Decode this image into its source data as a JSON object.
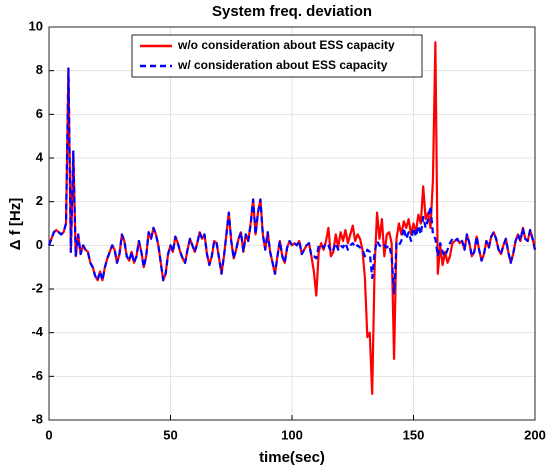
{
  "chart_data": {
    "type": "line",
    "title": "System freq. deviation",
    "xlabel": "time(sec)",
    "ylabel": "Δ f [Hz]",
    "x": [
      0,
      1,
      2,
      3,
      4,
      5,
      6,
      7,
      8,
      9,
      10,
      11,
      12,
      13,
      14,
      15,
      16,
      17,
      18,
      19,
      20,
      21,
      22,
      23,
      24,
      25,
      26,
      27,
      28,
      29,
      30,
      31,
      32,
      33,
      34,
      35,
      36,
      37,
      38,
      39,
      40,
      41,
      42,
      43,
      44,
      45,
      46,
      47,
      48,
      49,
      50,
      51,
      52,
      53,
      54,
      55,
      56,
      57,
      58,
      59,
      60,
      61,
      62,
      63,
      64,
      65,
      66,
      67,
      68,
      69,
      70,
      71,
      72,
      73,
      74,
      75,
      76,
      77,
      78,
      79,
      80,
      81,
      82,
      83,
      84,
      85,
      86,
      87,
      88,
      89,
      90,
      91,
      92,
      93,
      94,
      95,
      96,
      97,
      98,
      99,
      100,
      101,
      102,
      103,
      104,
      105,
      106,
      107,
      108,
      109,
      110,
      111,
      112,
      113,
      114,
      115,
      116,
      117,
      118,
      119,
      120,
      121,
      122,
      123,
      124,
      125,
      126,
      127,
      128,
      129,
      130,
      131,
      132,
      133,
      134,
      135,
      136,
      137,
      138,
      139,
      140,
      141,
      142,
      143,
      144,
      145,
      146,
      147,
      148,
      149,
      150,
      151,
      152,
      153,
      154,
      155,
      156,
      157,
      158,
      159,
      160,
      161,
      162,
      163,
      164,
      165,
      166,
      167,
      168,
      169,
      170,
      171,
      172,
      173,
      174,
      175,
      176,
      177,
      178,
      179,
      180,
      181,
      182,
      183,
      184,
      185,
      186,
      187,
      188,
      189,
      190,
      191,
      192,
      193,
      194,
      195,
      196,
      197,
      198,
      199,
      200
    ],
    "series": [
      {
        "name": "w/o consideration about ESS capacity",
        "color": "#ff0000",
        "linestyle": "solid",
        "values": [
          0,
          0.3,
          0.6,
          0.7,
          0.6,
          0.5,
          0.6,
          1.0,
          8.1,
          -0.3,
          4.3,
          -0.5,
          0.5,
          -0.4,
          0,
          -0.2,
          -0.3,
          -0.8,
          -1.0,
          -1.4,
          -1.6,
          -1.2,
          -1.6,
          -1.0,
          -0.6,
          -0.3,
          0,
          -0.2,
          -0.8,
          -0.4,
          0.5,
          0.2,
          -0.5,
          -0.7,
          -0.3,
          -0.8,
          -0.5,
          0.2,
          -0.3,
          -1.0,
          -0.5,
          0.6,
          0.3,
          0.8,
          0.5,
          0,
          -0.8,
          -1.6,
          -1.3,
          -0.4,
          0,
          -0.3,
          0.4,
          0.1,
          -0.3,
          -0.6,
          -0.8,
          -0.2,
          0.3,
          0,
          -0.3,
          0.1,
          0.6,
          0.3,
          0.5,
          -0.4,
          -0.9,
          -0.5,
          0.2,
          0.1,
          -0.6,
          -1.3,
          -0.5,
          0.5,
          1.5,
          0.2,
          -0.6,
          -0.2,
          0.3,
          0.6,
          -0.3,
          0.5,
          0.2,
          1.0,
          2.1,
          0.5,
          1.5,
          2.1,
          0.5,
          -0.2,
          0.6,
          -0.3,
          -0.8,
          -1.3,
          -0.5,
          0.2,
          -0.5,
          -0.8,
          -0.1,
          0.2,
          0,
          0.1,
          0,
          0.2,
          -0.4,
          -0.2,
          0,
          0.1,
          -0.5,
          -1.2,
          -2.3,
          -0.3,
          0.1,
          -0.2,
          0.2,
          0.8,
          -0.5,
          -0.3,
          0.5,
          -0.1,
          0.6,
          0.2,
          0.7,
          0.1,
          0.5,
          0.9,
          0.2,
          0.5,
          0.3,
          -0.2,
          -1.5,
          -4.2,
          -4.0,
          -6.8,
          -1.0,
          1.5,
          0.3,
          1.2,
          -0.5,
          0.5,
          0.6,
          0.1,
          -5.2,
          0.3,
          1.0,
          0.5,
          1.1,
          0.8,
          1.2,
          0.5,
          1.0,
          0.6,
          1.4,
          1.0,
          2.7,
          1.2,
          1.5,
          0.8,
          3.0,
          9.3,
          -1.3,
          0,
          -0.9,
          -0.3,
          -0.8,
          -0.5,
          0.1,
          0.2,
          0.3,
          0.1,
          0.2,
          -0.2,
          0.5,
          0.1,
          -0.5,
          -0.3,
          0.4,
          -0.2,
          -0.7,
          -0.4,
          0.2,
          -0.1,
          0.4,
          0.6,
          0.3,
          -0.2,
          -0.4,
          0,
          0.3,
          -0.3,
          -0.8,
          -0.4,
          0.2,
          0.5,
          0.2,
          0.8,
          0.3,
          0.2,
          0.7,
          0.3,
          -0.2
        ]
      },
      {
        "name": "w/ consideration about ESS capacity",
        "color": "#0000ff",
        "linestyle": "dashed",
        "values": [
          0,
          0.3,
          0.6,
          0.7,
          0.6,
          0.5,
          0.6,
          1.0,
          8.1,
          -0.3,
          4.3,
          -0.5,
          0.5,
          -0.4,
          0,
          -0.2,
          -0.3,
          -0.8,
          -1.0,
          -1.4,
          -1.6,
          -1.2,
          -1.6,
          -1.0,
          -0.6,
          -0.3,
          0,
          -0.2,
          -0.8,
          -0.4,
          0.5,
          0.2,
          -0.5,
          -0.7,
          -0.3,
          -0.8,
          -0.5,
          0.2,
          -0.3,
          -1.0,
          -0.5,
          0.6,
          0.3,
          0.8,
          0.5,
          0,
          -0.8,
          -1.6,
          -1.3,
          -0.4,
          0,
          -0.3,
          0.4,
          0.1,
          -0.3,
          -0.6,
          -0.8,
          -0.2,
          0.3,
          0,
          -0.3,
          0.1,
          0.6,
          0.3,
          0.5,
          -0.4,
          -0.9,
          -0.5,
          0.2,
          0.1,
          -0.6,
          -1.3,
          -0.5,
          0.5,
          1.5,
          0.2,
          -0.6,
          -0.2,
          0.3,
          0.6,
          -0.3,
          0.5,
          0.2,
          1.0,
          2.1,
          0.5,
          1.5,
          2.1,
          0.5,
          -0.2,
          0.6,
          -0.3,
          -0.8,
          -1.3,
          -0.5,
          0.2,
          -0.5,
          -0.8,
          -0.1,
          0.2,
          0,
          0.1,
          0,
          0.2,
          -0.4,
          -0.2,
          0,
          0.1,
          -0.5,
          -0.5,
          -0.6,
          0,
          0,
          -0.1,
          0.1,
          0,
          -0.3,
          -0.2,
          0.1,
          -0.2,
          0,
          -0.1,
          0.1,
          -0.2,
          0,
          0.1,
          -0.1,
          0,
          -0.1,
          -0.2,
          -0.5,
          -0.2,
          -0.3,
          -1.5,
          -0.3,
          0.2,
          0,
          -0.1,
          0,
          -0.1,
          0,
          -0.5,
          -2.2,
          0.1,
          0,
          0.2,
          0.8,
          0.3,
          0.6,
          0.2,
          0.8,
          0.4,
          0.9,
          0.5,
          1.3,
          0.8,
          1.2,
          1.8,
          0.5,
          0.3,
          -0.5,
          0.1,
          -0.3,
          -0.5,
          -0.2,
          0.1,
          0.3,
          0.2,
          0.3,
          0.1,
          0.2,
          -0.2,
          0.5,
          0.1,
          -0.5,
          -0.3,
          0.4,
          -0.2,
          -0.7,
          -0.4,
          0.2,
          -0.1,
          0.4,
          0.6,
          0.3,
          -0.2,
          -0.4,
          0,
          0.3,
          -0.3,
          -0.8,
          -0.4,
          0.2,
          0.5,
          0.2,
          0.8,
          0.3,
          0.2,
          0.7,
          0.3,
          -0.2
        ]
      }
    ],
    "xlim": [
      0,
      200
    ],
    "xticks": [
      0,
      50,
      100,
      150,
      200
    ],
    "ylim": [
      -8,
      10
    ],
    "yticks": [
      -8,
      -6,
      -4,
      -2,
      0,
      2,
      4,
      6,
      8,
      10
    ],
    "grid": true,
    "legend": "upper center"
  }
}
